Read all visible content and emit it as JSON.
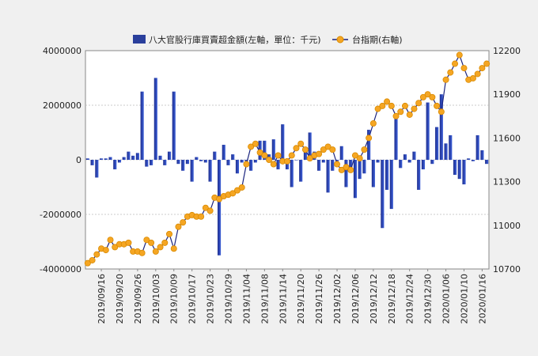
{
  "chart_data": {
    "type": "bar+line",
    "legend": {
      "position": "top",
      "bar_label": "八大官股行庫買賣超金額(左軸，單位：千元)",
      "line_label": "台指期(右軸)"
    },
    "colors": {
      "bar_dark": "#1f2f8f",
      "bar_light": "#3c5fd8",
      "line": "#1a237e",
      "marker_fill": "#f5a623",
      "marker_stroke": "#d98a00",
      "grid": "#bbbbbb",
      "plot_bg": "#ffffff",
      "page_bg": "#f0f0f0"
    },
    "y_left": {
      "min": -4000000,
      "max": 4000000,
      "ticks": [
        -4000000,
        -2000000,
        0,
        2000000,
        4000000
      ]
    },
    "y_right": {
      "min": 10700,
      "max": 12200,
      "ticks": [
        10700,
        11000,
        11300,
        11600,
        11900,
        12200
      ]
    },
    "x_tick_labels": [
      "2019/09/16",
      "2019/09/20",
      "2019/09/26",
      "2019/10/03",
      "2019/10/09",
      "2019/10/17",
      "2019/10/23",
      "2019/10/29",
      "2019/11/04",
      "2019/11/08",
      "2019/11/14",
      "2019/11/20",
      "2019/11/26",
      "2019/12/02",
      "2019/12/06",
      "2019/12/12",
      "2019/12/18",
      "2019/12/24",
      "2019/12/30",
      "2020/01/06",
      "2020/01/10",
      "2020/01/16"
    ],
    "x_tick_index": [
      3,
      7,
      11,
      15,
      19,
      23,
      27,
      31,
      35,
      39,
      43,
      47,
      51,
      55,
      59,
      63,
      67,
      71,
      75,
      79,
      83,
      87
    ],
    "bar_values": [
      50000,
      -200000,
      -650000,
      50000,
      50000,
      100000,
      -350000,
      -100000,
      100000,
      300000,
      150000,
      250000,
      2500000,
      -250000,
      -200000,
      3000000,
      150000,
      -200000,
      300000,
      2500000,
      -150000,
      -400000,
      -150000,
      -800000,
      100000,
      -50000,
      -100000,
      -800000,
      300000,
      -3500000,
      550000,
      -200000,
      200000,
      -500000,
      -100000,
      -50000,
      -400000,
      -100000,
      700000,
      700000,
      200000,
      750000,
      -350000,
      1300000,
      -350000,
      -1000000,
      0,
      -800000,
      400000,
      1000000,
      300000,
      -400000,
      -100000,
      -1200000,
      -400000,
      -50000,
      500000,
      -1000000,
      -400000,
      -1400000,
      -700000,
      -500000,
      1100000,
      -1000000,
      -100000,
      -2500000,
      -1100000,
      -1800000,
      1600000,
      -300000,
      200000,
      -100000,
      300000,
      -1100000,
      -350000,
      2100000,
      -150000,
      1200000,
      2400000,
      600000,
      900000,
      -550000,
      -700000,
      -900000,
      50000,
      -50000,
      900000,
      350000,
      -150000
    ],
    "line_values": [
      10740,
      10760,
      10800,
      10840,
      10830,
      10900,
      10850,
      10870,
      10870,
      10880,
      10820,
      10820,
      10810,
      10900,
      10880,
      10820,
      10850,
      10880,
      10940,
      10840,
      10990,
      11020,
      11060,
      11070,
      11060,
      11060,
      11120,
      11100,
      11190,
      11180,
      11200,
      11210,
      11220,
      11240,
      11260,
      11420,
      11540,
      11560,
      11500,
      11480,
      11450,
      11420,
      11480,
      11440,
      11440,
      11480,
      11530,
      11560,
      11520,
      11460,
      11480,
      11490,
      11520,
      11540,
      11520,
      11420,
      11380,
      11400,
      11380,
      11480,
      11460,
      11520,
      11600,
      11700,
      11800,
      11820,
      11850,
      11820,
      11750,
      11780,
      11820,
      11760,
      11800,
      11840,
      11880,
      11900,
      11880,
      11820,
      11780,
      12000,
      12050,
      12110,
      12170,
      12080,
      12000,
      12010,
      12040,
      12080,
      12110
    ]
  }
}
